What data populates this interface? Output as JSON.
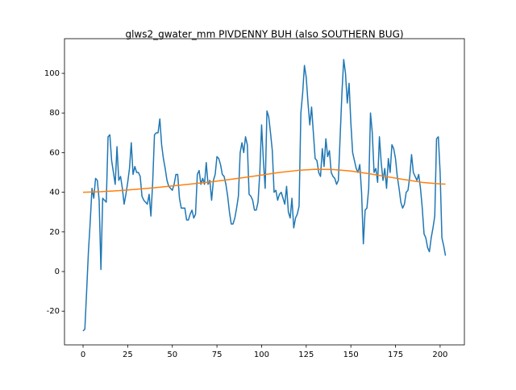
{
  "chart_data": {
    "type": "line",
    "title": "glws2_gwater_mm PIVDENNY BUH (also SOUTHERN BUG)",
    "xlim": [
      -10.4,
      213.6
    ],
    "xticks": [
      0,
      25,
      50,
      75,
      100,
      125,
      150,
      175,
      200
    ],
    "ylim": [
      -37,
      117.5
    ],
    "yticks": [
      -20,
      0,
      20,
      40,
      60,
      80,
      100
    ],
    "series": [
      {
        "color": "#1f77b4",
        "x": [
          0,
          1,
          2,
          3,
          4,
          5,
          6,
          7,
          8,
          9,
          10,
          11,
          12,
          13,
          14,
          15,
          16,
          17,
          18,
          19,
          20,
          21,
          22,
          23,
          24,
          25,
          26,
          27,
          28,
          29,
          30,
          31,
          32,
          33,
          34,
          35,
          36,
          37,
          38,
          39,
          40,
          41,
          42,
          43,
          44,
          45,
          46,
          47,
          48,
          49,
          50,
          51,
          52,
          53,
          54,
          55,
          56,
          57,
          58,
          59,
          60,
          61,
          62,
          63,
          64,
          65,
          66,
          67,
          68,
          69,
          70,
          71,
          72,
          73,
          74,
          75,
          76,
          77,
          78,
          79,
          80,
          81,
          82,
          83,
          84,
          85,
          86,
          87,
          88,
          89,
          90,
          91,
          92,
          93,
          94,
          95,
          96,
          97,
          98,
          99,
          100,
          101,
          102,
          103,
          104,
          105,
          106,
          107,
          108,
          109,
          110,
          111,
          112,
          113,
          114,
          115,
          116,
          117,
          118,
          119,
          120,
          121,
          122,
          123,
          124,
          125,
          126,
          127,
          128,
          129,
          130,
          131,
          132,
          133,
          134,
          135,
          136,
          137,
          138,
          139,
          140,
          141,
          142,
          143,
          144,
          145,
          146,
          147,
          148,
          149,
          150,
          151,
          152,
          153,
          154,
          155,
          156,
          157,
          158,
          159,
          160,
          161,
          162,
          163,
          164,
          165,
          166,
          167,
          168,
          169,
          170,
          171,
          172,
          173,
          174,
          175,
          176,
          177,
          178,
          179,
          180,
          181,
          182,
          183,
          184,
          185,
          186,
          187,
          188,
          189,
          190,
          191,
          192,
          193,
          194,
          195,
          196,
          197,
          198,
          199,
          200,
          201,
          202,
          203
        ],
        "values": [
          -30,
          -29,
          -10,
          10,
          25,
          42,
          37,
          47,
          46,
          36,
          1,
          37,
          36,
          35,
          68,
          69,
          56,
          50,
          44,
          63,
          46,
          48,
          42,
          34,
          39,
          45,
          52,
          65,
          49,
          53,
          50,
          50,
          48,
          38,
          36,
          35,
          34,
          39,
          28,
          45,
          69,
          70,
          70,
          77,
          64,
          57,
          52,
          46,
          43,
          42,
          41,
          44,
          49,
          49,
          37,
          32,
          32,
          32,
          26,
          26,
          29,
          31,
          27,
          29,
          49,
          51,
          44,
          47,
          44,
          55,
          44,
          46,
          36,
          46,
          49,
          58,
          57,
          54,
          49,
          48,
          44,
          38,
          30,
          24,
          24,
          27,
          32,
          38,
          60,
          65,
          60,
          68,
          64,
          39,
          38,
          36,
          31,
          31,
          35,
          50,
          74,
          56,
          42,
          81,
          78,
          70,
          61,
          40,
          41,
          36,
          39,
          40,
          37,
          34,
          43,
          30,
          27,
          37,
          22,
          27,
          29,
          33,
          80,
          90,
          104,
          98,
          85,
          74,
          83,
          70,
          57,
          56,
          50,
          48,
          62,
          53,
          67,
          58,
          61,
          50,
          48,
          47,
          44,
          46,
          68,
          90,
          107,
          100,
          85,
          95,
          75,
          60,
          56,
          52,
          50,
          54,
          40,
          14,
          31,
          32,
          42,
          80,
          70,
          50,
          52,
          45,
          68,
          55,
          46,
          52,
          42,
          57,
          50,
          64,
          62,
          57,
          48,
          42,
          35,
          32,
          34,
          40,
          41,
          48,
          59,
          50,
          48,
          46,
          49,
          42,
          32,
          19,
          17,
          12,
          10,
          17,
          22,
          28,
          67,
          68,
          50,
          17,
          13,
          8
        ]
      },
      {
        "color": "#ff7f0e",
        "x": [
          0,
          10,
          20,
          30,
          40,
          50,
          60,
          70,
          80,
          90,
          100,
          110,
          120,
          130,
          140,
          150,
          160,
          170,
          180,
          190,
          200,
          203
        ],
        "values": [
          40,
          40.3,
          40.8,
          41.5,
          42.3,
          43.2,
          44.1,
          45.1,
          46.2,
          47.4,
          48.7,
          50,
          51,
          51.6,
          51.5,
          50.7,
          49.4,
          47.9,
          46.4,
          45,
          44.2,
          44.1
        ]
      }
    ]
  }
}
